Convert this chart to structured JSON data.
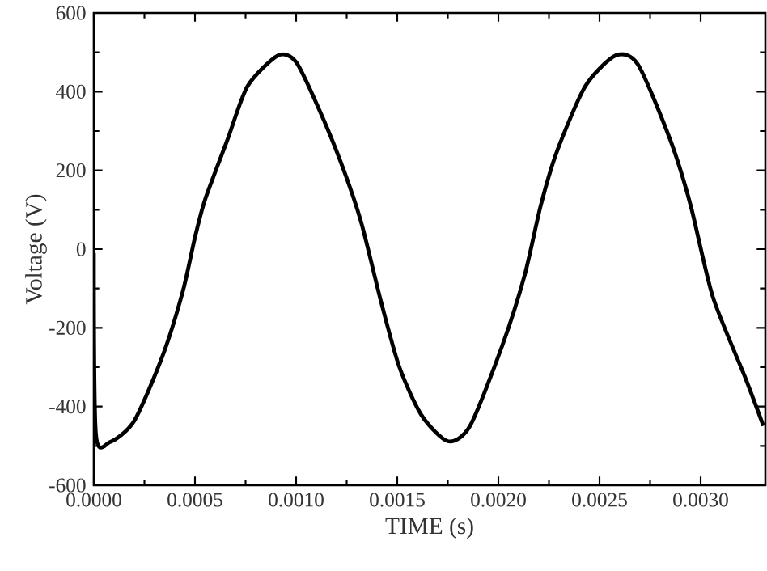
{
  "chart_data": {
    "type": "line",
    "xlabel": "TIME (s)",
    "ylabel": "Voltage (V)",
    "color": "#000000",
    "marker": "none",
    "line_style": "solid",
    "grid": false,
    "x": [
      0,
      1e-05,
      8e-05,
      0.0002,
      0.00034,
      0.00044,
      0.0005,
      0.00055,
      0.00066,
      0.00076,
      0.00091,
      0.001,
      0.00111,
      0.00122,
      0.00132,
      0.00142,
      0.00151,
      0.00162,
      0.00175,
      0.00186,
      0.00202,
      0.00213,
      0.00221,
      0.00229,
      0.00243,
      0.00258,
      0.00269,
      0.00285,
      0.00295,
      0.00306,
      0.00322,
      0.00331
    ],
    "values": [
      -10,
      -470,
      -490,
      -436,
      -271,
      -107,
      30,
      126,
      277,
      414,
      492,
      475,
      359,
      222,
      71,
      -134,
      -299,
      -422,
      -488,
      -449,
      -244,
      -66,
      112,
      249,
      414,
      492,
      469,
      277,
      112,
      -121,
      -326,
      -449
    ],
    "xlim": [
      0,
      0.00332
    ],
    "ylim": [
      -600,
      600
    ],
    "xticks": [
      {
        "value": 0,
        "label": "0.0000"
      },
      {
        "value": 0.0005,
        "label": "0.0005"
      },
      {
        "value": 0.001,
        "label": "0.0010"
      },
      {
        "value": 0.0015,
        "label": "0.0015"
      },
      {
        "value": 0.002,
        "label": "0.0020"
      },
      {
        "value": 0.0025,
        "label": "0.0025"
      },
      {
        "value": 0.003,
        "label": "0.0030"
      }
    ],
    "yticks": [
      -600,
      -400,
      -200,
      0,
      200,
      400,
      600
    ]
  }
}
